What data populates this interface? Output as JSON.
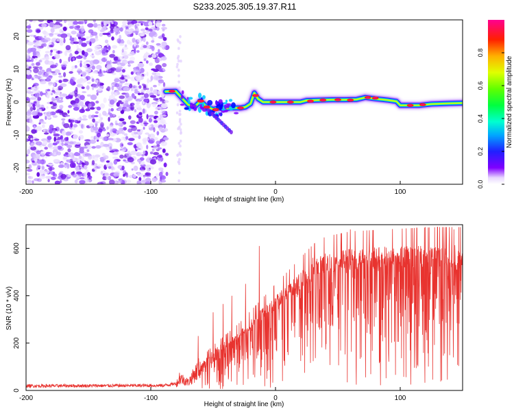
{
  "title": "S233.2025.305.19.37.R11",
  "colors": {
    "snr_line": "#e8332f",
    "scatter_purple": "#7a1ff0",
    "colormap": [
      "#ffffff",
      "#8000ff",
      "#0000ff",
      "#00c8ff",
      "#00ff80",
      "#40ff00",
      "#ffff00",
      "#ff8000",
      "#ff0000",
      "#ff0080"
    ]
  },
  "chart_data": [
    {
      "type": "heatmap",
      "name": "spectrogram",
      "xlabel": "Height of straight line (km)",
      "ylabel": "Frequency (Hz)",
      "xlim": [
        -200,
        150
      ],
      "ylim": [
        -25,
        25
      ],
      "xticks": [
        -200,
        -100,
        0,
        100
      ],
      "yticks": [
        -20,
        -10,
        0,
        10,
        20
      ],
      "noise_region": [
        -200,
        -87
      ],
      "ridge": [
        {
          "x": -88,
          "y": 3.2
        },
        {
          "x": -80,
          "y": 3.3
        },
        {
          "x": -75,
          "y": 1.2
        },
        {
          "x": -70,
          "y": -0.8
        },
        {
          "x": -65,
          "y": -1.5
        },
        {
          "x": -60,
          "y": 0.3
        },
        {
          "x": -55,
          "y": -1.5
        },
        {
          "x": -50,
          "y": -2.2
        },
        {
          "x": -45,
          "y": -1.8
        },
        {
          "x": -40,
          "y": -2.0
        },
        {
          "x": -36,
          "y": -1.8
        },
        {
          "x": -33,
          "y": -1.8
        },
        {
          "x": -28,
          "y": -1.8
        },
        {
          "x": -24,
          "y": -1.5
        },
        {
          "x": -20,
          "y": -0.5
        },
        {
          "x": -17,
          "y": 2.8
        },
        {
          "x": -14,
          "y": 1.0
        },
        {
          "x": -10,
          "y": 0.0
        },
        {
          "x": 0,
          "y": 0.0
        },
        {
          "x": 10,
          "y": 0.0
        },
        {
          "x": 20,
          "y": 0.0
        },
        {
          "x": 25,
          "y": 0.5
        },
        {
          "x": 35,
          "y": 0.6
        },
        {
          "x": 45,
          "y": 0.7
        },
        {
          "x": 55,
          "y": 0.7
        },
        {
          "x": 65,
          "y": 0.8
        },
        {
          "x": 72,
          "y": 1.4
        },
        {
          "x": 80,
          "y": 1.0
        },
        {
          "x": 90,
          "y": 0.6
        },
        {
          "x": 97,
          "y": 0.2
        },
        {
          "x": 100,
          "y": -1.0
        },
        {
          "x": 115,
          "y": -1.0
        },
        {
          "x": 125,
          "y": -0.6
        },
        {
          "x": 140,
          "y": -0.4
        },
        {
          "x": 150,
          "y": -0.3
        }
      ],
      "hotspots": [
        {
          "x": -83,
          "y": 3.3
        },
        {
          "x": -60,
          "y": 0.3
        },
        {
          "x": -55,
          "y": -1.5
        },
        {
          "x": -48,
          "y": -2.3
        },
        {
          "x": -28,
          "y": -1.8
        },
        {
          "x": -16,
          "y": 2.0
        },
        {
          "x": -2,
          "y": 0.0
        },
        {
          "x": 12,
          "y": 0.0
        },
        {
          "x": 28,
          "y": 0.3
        },
        {
          "x": 38,
          "y": 0.6
        },
        {
          "x": 50,
          "y": 0.7
        },
        {
          "x": 60,
          "y": 0.6
        },
        {
          "x": 74,
          "y": 1.4
        },
        {
          "x": 80,
          "y": 1.2
        },
        {
          "x": 108,
          "y": -1.0
        },
        {
          "x": 118,
          "y": -0.8
        }
      ],
      "colorbar": {
        "label": "Normalized spectral amplitude",
        "range": [
          0,
          1
        ],
        "ticks": [
          "0.0",
          "0.2",
          "0.4",
          "0.6",
          "0.8"
        ]
      }
    },
    {
      "type": "line",
      "name": "snr",
      "xlabel": "Height of straight line (km)",
      "ylabel": "SNR (10 * v/v)",
      "xlim": [
        -200,
        150
      ],
      "ylim": [
        0,
        700
      ],
      "xticks": [
        -200,
        -100,
        0,
        100
      ],
      "yticks": [
        0,
        200,
        400,
        600
      ],
      "envelope": [
        {
          "x": -200,
          "y": 20
        },
        {
          "x": -90,
          "y": 22
        },
        {
          "x": -80,
          "y": 30
        },
        {
          "x": -76,
          "y": 60
        },
        {
          "x": -70,
          "y": 40
        },
        {
          "x": -60,
          "y": 120
        },
        {
          "x": -50,
          "y": 170
        },
        {
          "x": -40,
          "y": 210
        },
        {
          "x": -30,
          "y": 250
        },
        {
          "x": -20,
          "y": 300
        },
        {
          "x": -10,
          "y": 350
        },
        {
          "x": 0,
          "y": 400
        },
        {
          "x": 10,
          "y": 450
        },
        {
          "x": 20,
          "y": 500
        },
        {
          "x": 30,
          "y": 550
        },
        {
          "x": 40,
          "y": 580
        },
        {
          "x": 60,
          "y": 600
        },
        {
          "x": 100,
          "y": 610
        },
        {
          "x": 150,
          "y": 620
        }
      ],
      "spikes": [
        {
          "x": -77,
          "y": 75
        },
        {
          "x": -62,
          "y": 230
        },
        {
          "x": -50,
          "y": 330
        },
        {
          "x": -42,
          "y": 365
        },
        {
          "x": -35,
          "y": 400
        },
        {
          "x": -24,
          "y": 450
        },
        {
          "x": -13,
          "y": 610
        },
        {
          "x": 30,
          "y": 560
        },
        {
          "x": 60,
          "y": 680
        },
        {
          "x": 120,
          "y": 690
        },
        {
          "x": 143,
          "y": 680
        }
      ]
    }
  ]
}
